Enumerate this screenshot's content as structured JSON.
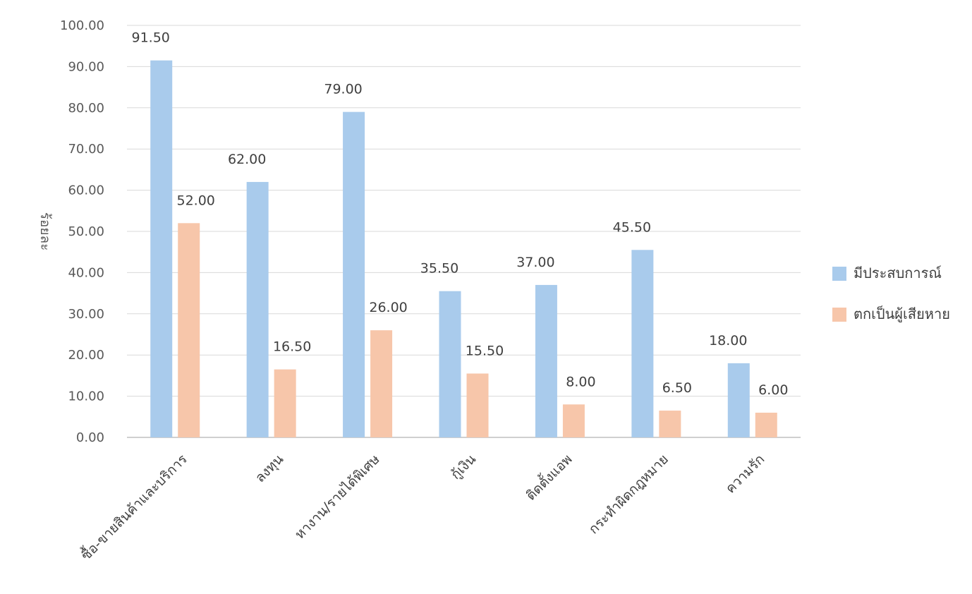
{
  "chart_data": {
    "type": "bar",
    "title": "",
    "xlabel": "",
    "ylabel": "ร้อยละ",
    "ylim": [
      0,
      100
    ],
    "yticks": [
      "0.00",
      "10.00",
      "20.00",
      "30.00",
      "40.00",
      "50.00",
      "60.00",
      "70.00",
      "80.00",
      "90.00",
      "100.00"
    ],
    "grid": true,
    "legend_position": "right",
    "categories": [
      "ซื้อ-ขายสินค้าและบริการ",
      "ลงทุน",
      "หางาน/รายได้พิเศษ",
      "กู้เงิน",
      "ติดตั้งแอพ",
      "กระทำผิดกฎหมาย",
      "ความรัก"
    ],
    "series": [
      {
        "name": "มีประสบการณ์",
        "color": "#a9cbec",
        "values": [
          91.5,
          62.0,
          79.0,
          35.5,
          37.0,
          45.5,
          18.0
        ],
        "labels": [
          "91.50",
          "62.00",
          "79.00",
          "35.50",
          "37.00",
          "45.50",
          "18.00"
        ]
      },
      {
        "name": "ตกเป็นผู้เสียหาย",
        "color": "#f7c6aa",
        "values": [
          52.0,
          16.5,
          26.0,
          15.5,
          8.0,
          6.5,
          6.0
        ],
        "labels": [
          "52.00",
          "16.50",
          "26.00",
          "15.50",
          "8.00",
          "6.50",
          "6.00"
        ]
      }
    ]
  }
}
